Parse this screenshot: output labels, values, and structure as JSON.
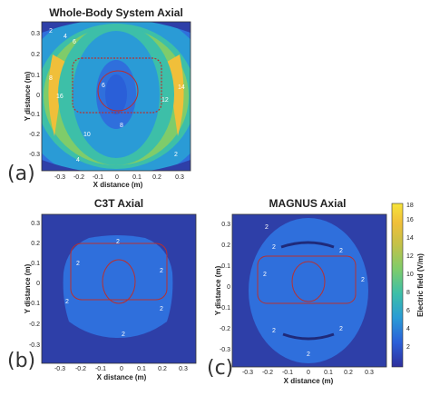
{
  "chart_data": [
    {
      "type": "heatmap",
      "panel_label": "(a)",
      "title": "Whole-Body System Axial",
      "xlabel": "X distance (m)",
      "ylabel": "Y distance (m)",
      "xlim": [
        -0.35,
        0.35
      ],
      "ylim": [
        -0.35,
        0.35
      ],
      "xticks": [
        "-0.3",
        "-0.2",
        "-0.1",
        "0",
        "0.1",
        "0.2",
        "0.3"
      ],
      "yticks": [
        "-0.3",
        "-0.2",
        "-0.1",
        "0",
        "0.1",
        "0.2",
        "0.3"
      ],
      "contour_labels": [
        "2",
        "4",
        "6",
        "8",
        "10",
        "12",
        "14",
        "16"
      ]
    },
    {
      "type": "heatmap",
      "panel_label": "(b)",
      "title": "C3T Axial",
      "xlabel": "X distance (m)",
      "ylabel": "Y distance (m)",
      "xlim": [
        -0.35,
        0.35
      ],
      "ylim": [
        -0.35,
        0.35
      ],
      "xticks": [
        "-0.3",
        "-0.2",
        "-0.1",
        "0",
        "0.1",
        "0.2",
        "0.3"
      ],
      "yticks": [
        "-0.3",
        "-0.2",
        "-0.1",
        "0",
        "0.1",
        "0.2",
        "0.3"
      ],
      "contour_labels": [
        "2"
      ]
    },
    {
      "type": "heatmap",
      "panel_label": "(c)",
      "title": "MAGNUS Axial",
      "xlabel": "X distance (m)",
      "ylabel": "Y distance (m)",
      "xlim": [
        -0.35,
        0.35
      ],
      "ylim": [
        -0.35,
        0.35
      ],
      "xticks": [
        "-0.3",
        "-0.2",
        "-0.1",
        "0",
        "0.1",
        "0.2",
        "0.3"
      ],
      "yticks": [
        "-0.3",
        "-0.2",
        "-0.1",
        "0",
        "0.1",
        "0.2",
        "0.3"
      ],
      "contour_labels": [
        "2"
      ]
    }
  ],
  "colorbar": {
    "label": "Electric field (V/m)",
    "ticks": [
      "2",
      "4",
      "6",
      "8",
      "10",
      "12",
      "14",
      "16",
      "18"
    ],
    "range": [
      0,
      18
    ],
    "colors": [
      "#2e2f9c",
      "#2a5fd8",
      "#2a9bd6",
      "#3dbfa8",
      "#7fcc6a",
      "#c4c148",
      "#f0bf3a",
      "#f7e43a"
    ]
  }
}
